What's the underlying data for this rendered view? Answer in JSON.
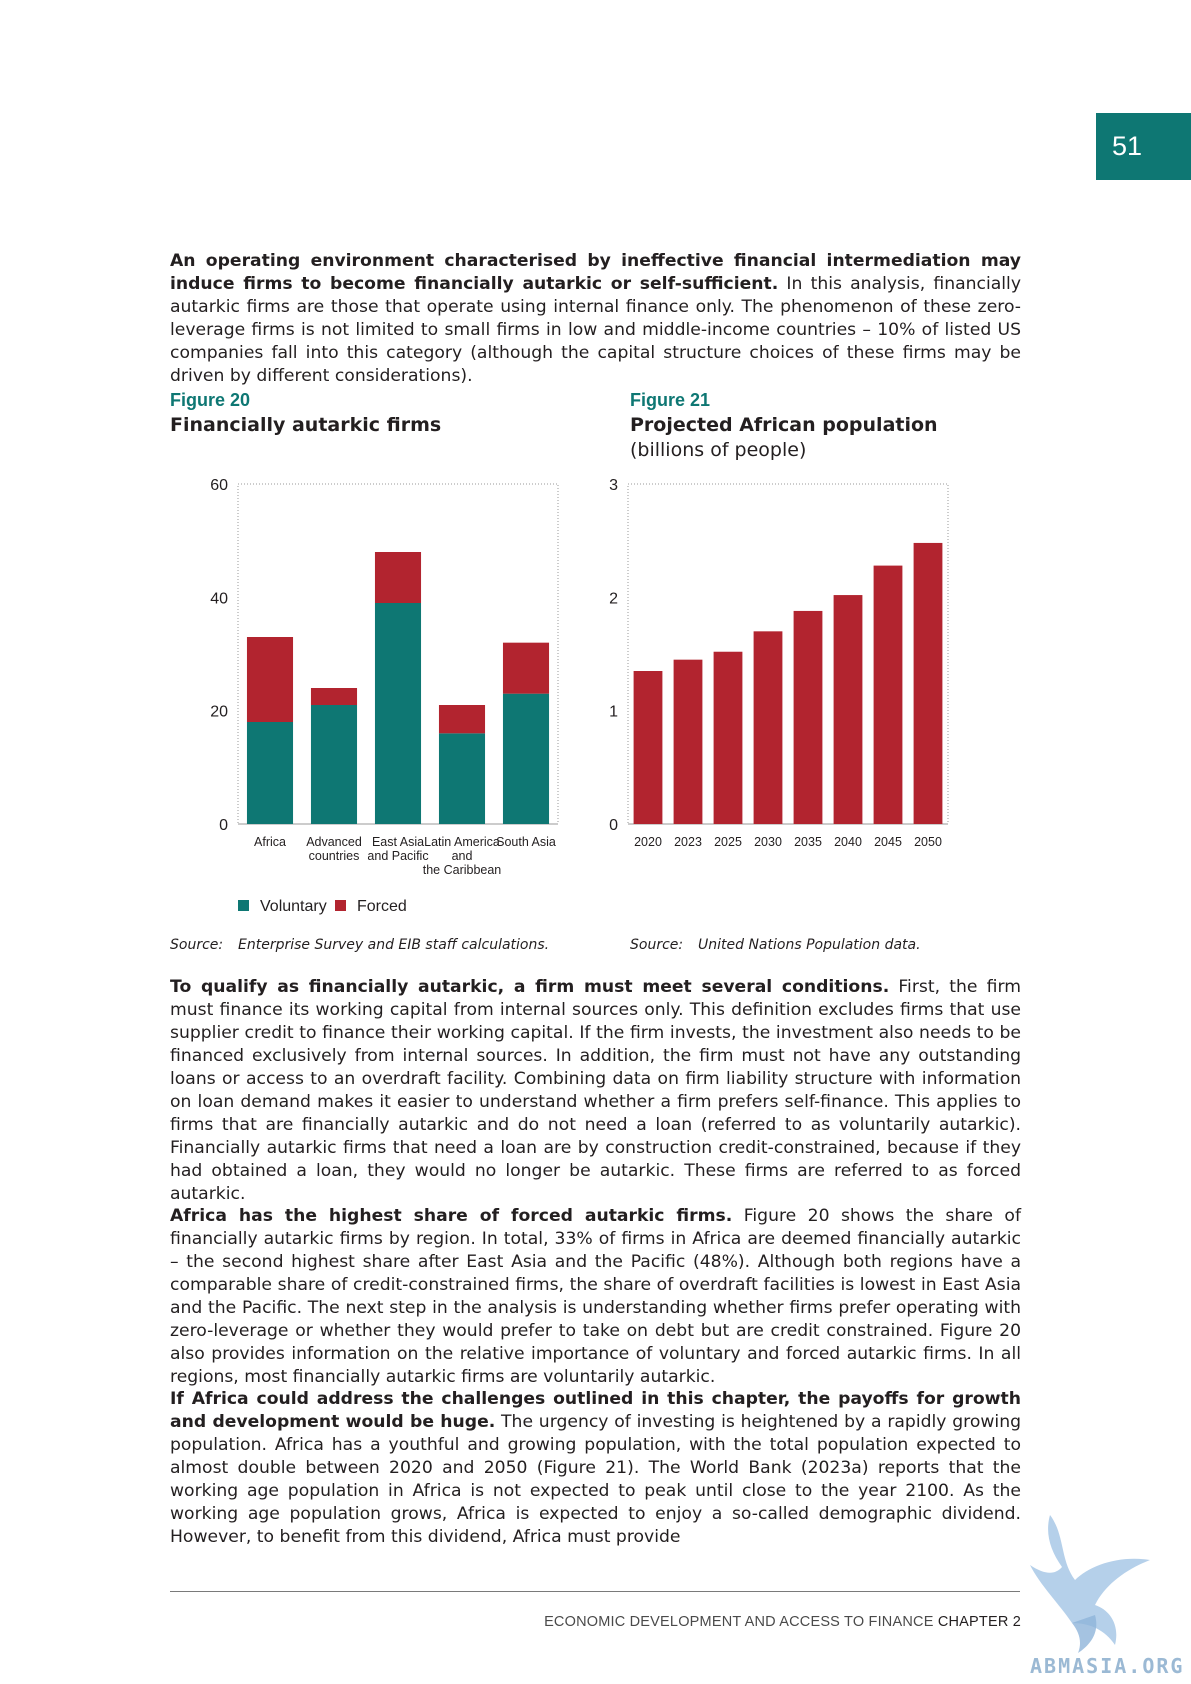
{
  "page_number": "51",
  "intro_paragraph": {
    "lead": "An operating environment characterised by ineffective financial intermediation may induce firms to become financially autarkic or self-sufficient.",
    "body": " In this analysis, financially autarkic firms are those that operate using internal finance only. The phenomenon of these zero-leverage firms is not limited to small firms in low and middle-income countries – 10% of listed US companies fall into this category (although the capital structure choices of these firms may be driven by different considerations)."
  },
  "figure20": {
    "number": "Figure 20",
    "title": "Financially autarkic firms",
    "source_label": "Source:",
    "source_text": "Enterprise Survey and EIB staff calculations."
  },
  "figure21": {
    "number": "Figure 21",
    "title": "Projected African population",
    "subtitle": "(billions of people)",
    "source_label": "Source:",
    "source_text": "United Nations Population data."
  },
  "chart_data": [
    {
      "type": "bar",
      "stacked": true,
      "categories": [
        [
          "Africa"
        ],
        [
          "Advanced",
          "countries"
        ],
        [
          "East Asia",
          "and Pacific"
        ],
        [
          "Latin America",
          "and",
          "the Caribbean"
        ],
        [
          "South Asia"
        ]
      ],
      "series": [
        {
          "name": "Voluntary",
          "color": "#0e7773",
          "values": [
            18,
            21,
            39,
            16,
            23
          ]
        },
        {
          "name": "Forced",
          "color": "#b2242f",
          "values": [
            15,
            3,
            9,
            5,
            9
          ]
        }
      ],
      "ylim": [
        0,
        60
      ],
      "yticks": [
        "0",
        "20",
        "40",
        "60"
      ],
      "legend_placement": "bottom-left",
      "grid": false
    },
    {
      "type": "bar",
      "categories": [
        "2020",
        "2023",
        "2025",
        "2030",
        "2035",
        "2040",
        "2045",
        "2050"
      ],
      "series": [
        {
          "color": "#b2242f",
          "values": [
            1.35,
            1.45,
            1.52,
            1.7,
            1.88,
            2.02,
            2.28,
            2.48
          ]
        }
      ],
      "ylim": [
        0,
        3
      ],
      "yticks": [
        "0",
        "1",
        "2",
        "3"
      ],
      "grid": false
    }
  ],
  "para2": {
    "lead": "To qualify as financially autarkic, a firm must meet several conditions.",
    "body": " First, the firm must finance its working capital from internal sources only. This definition excludes firms that use supplier credit to finance their working capital. If the firm invests, the investment also needs to be financed exclusively from internal sources. In addition, the firm must not have any outstanding loans or access to an overdraft facility. Combining data on firm liability structure with information on loan demand makes it easier to understand whether a firm prefers self-finance. This applies to firms that are financially autarkic and do not need a loan (referred to as voluntarily autarkic). Financially autarkic firms that need a loan are by construction credit-constrained, because if they had obtained a loan, they would no longer be autarkic. These firms are referred to as forced autarkic."
  },
  "para3": {
    "lead": "Africa has the highest share of forced autarkic firms.",
    "body": " Figure 20 shows the share of financially autarkic firms by region. In total, 33% of firms in Africa are deemed financially autarkic – the second highest share after East Asia and the Pacific (48%). Although both regions have a comparable share of credit-constrained firms, the share of overdraft facilities is lowest in East Asia and the Pacific. The next step in the analysis is understanding whether firms prefer operating with zero-leverage or whether they would prefer to take on debt but are credit constrained. Figure 20 also provides information on the relative importance of voluntary and forced autarkic firms. In all regions, most financially autarkic firms are voluntarily autarkic."
  },
  "para4": {
    "lead": "If Africa could address the challenges outlined in this chapter, the payoffs for growth and development would be huge.",
    "body": " The urgency of investing is heightened by a rapidly growing population. Africa has a youthful and growing population, with the total population expected to almost double between 2020 and 2050 (Figure 21). The World Bank (2023a) reports that the working age population in Africa is not expected to peak until close to the year 2100. As the working age population grows, Africa is expected to enjoy a so-called demographic dividend. However, to benefit from this dividend, Africa must provide"
  },
  "footer": {
    "section": "ECONOMIC DEVELOPMENT AND ACCESS TO FINANCE",
    "chapter": "CHAPTER 2"
  },
  "watermark": "ABMASIA.ORG"
}
